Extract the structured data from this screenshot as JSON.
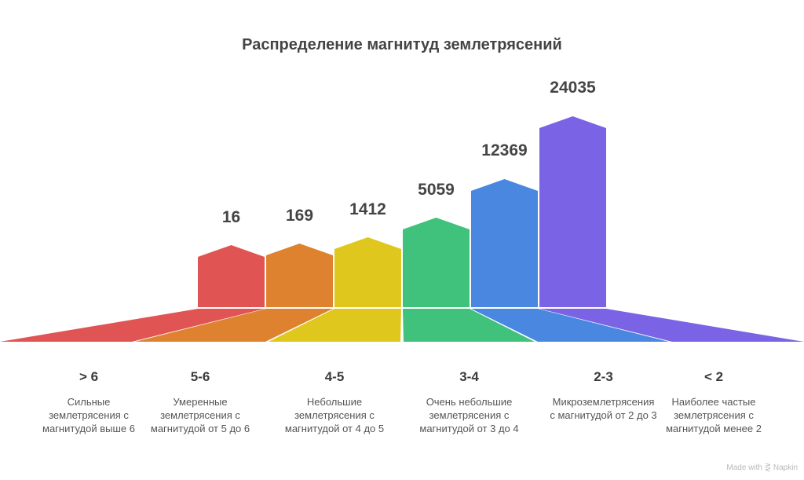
{
  "title": "Распределение магнитуд землетрясений",
  "footer": "Made with ⋛ Napkin",
  "colors": [
    "#E05553",
    "#DE8230",
    "#DFC71E",
    "#40C27C",
    "#4A87E0",
    "#7B63E5"
  ],
  "categories": [
    {
      "range": "> 6",
      "value": "16",
      "desc": [
        "Сильные",
        "землетрясения с",
        "магнитудой выше 6"
      ]
    },
    {
      "range": "5-6",
      "value": "169",
      "desc": [
        "Умеренные",
        "землетрясения с",
        "магнитудой от 5 до 6"
      ]
    },
    {
      "range": "4-5",
      "value": "1412",
      "desc": [
        "Небольшие",
        "землетрясения с",
        "магнитудой от 4 до 5"
      ]
    },
    {
      "range": "3-4",
      "value": "5059",
      "desc": [
        "Очень небольшие",
        "землетрясения с",
        "магнитудой от 3 до 4"
      ]
    },
    {
      "range": "2-3",
      "value": "12369",
      "desc": [
        "Микроземлетрясения",
        "с магнитудой от 2 до 3"
      ]
    },
    {
      "range": "< 2",
      "value": "24035",
      "desc": [
        "Наиболее частые",
        "землетрясения с",
        "магнитудой менее 2"
      ]
    }
  ],
  "chart_data": {
    "type": "bar",
    "title": "Распределение магнитуд землетрясений",
    "categories": [
      "> 6",
      "5-6",
      "4-5",
      "3-4",
      "2-3",
      "< 2"
    ],
    "values": [
      16,
      169,
      1412,
      5059,
      12369,
      24035
    ],
    "category_descriptions": [
      "Сильные землетрясения с магнитудой выше 6",
      "Умеренные землетрясения с магнитудой от 5 до 6",
      "Небольшие землетрясения с магнитудой от 4 до 5",
      "Очень небольшие землетрясения с магнитудой от 3 до 4",
      "Микроземлетрясения с магнитудой от 2 до 3",
      "Наиболее частые землетрясения с магнитудой менее 2"
    ],
    "xlabel": "",
    "ylabel": "",
    "grid": false,
    "legend": "none",
    "data_labels": true
  }
}
